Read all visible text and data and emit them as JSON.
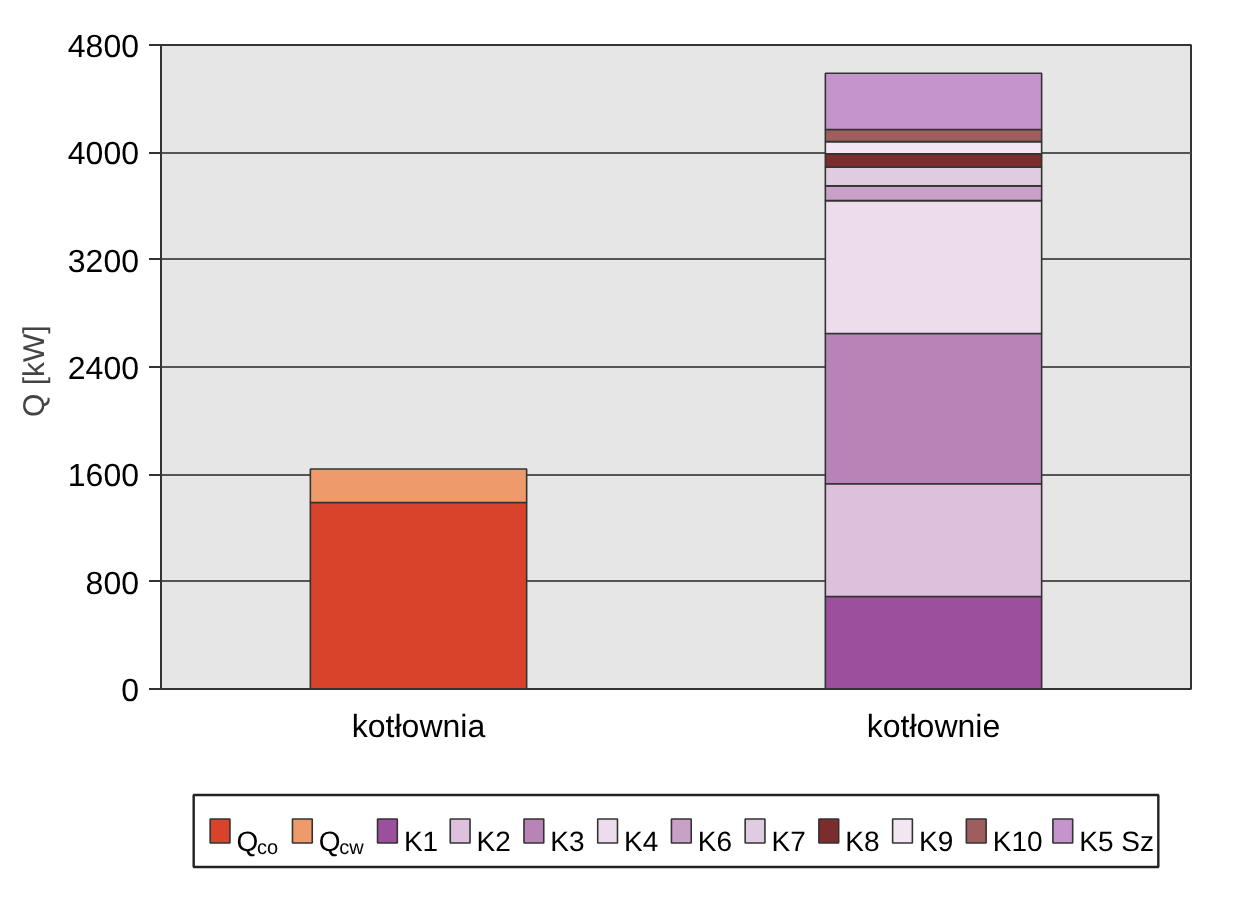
{
  "chart_data": {
    "type": "bar",
    "stacked": true,
    "categories": [
      "kotłownia",
      "kotłownie"
    ],
    "ylabel": "Q  [kW]",
    "ylim": [
      0,
      4800
    ],
    "yticks": [
      0,
      800,
      1600,
      2400,
      3200,
      4000,
      4800
    ],
    "grid": "y",
    "legend": "bottom",
    "series": [
      {
        "name": "Q$_{co}$",
        "color": "#d9432b",
        "values": [
          1390,
          null
        ]
      },
      {
        "name": "Q$_{cw}$",
        "color": "#ef9a6a",
        "values": [
          250,
          null
        ]
      },
      {
        "name": "K1",
        "color": "#9c4f9c",
        "values": [
          null,
          690
        ]
      },
      {
        "name": "K2",
        "color": "#dcc0dc",
        "values": [
          null,
          840
        ]
      },
      {
        "name": "K3",
        "color": "#b884b8",
        "values": [
          null,
          1120
        ]
      },
      {
        "name": "K4",
        "color": "#ecdcec",
        "values": [
          null,
          990
        ]
      },
      {
        "name": "K6",
        "color": "#c8a0c8",
        "values": [
          null,
          110
        ]
      },
      {
        "name": "K7",
        "color": "#e0cce0",
        "values": [
          null,
          140
        ]
      },
      {
        "name": "K8",
        "color": "#7b2c2c",
        "values": [
          null,
          100
        ]
      },
      {
        "name": "K9",
        "color": "#f2e6f2",
        "values": [
          null,
          90
        ]
      },
      {
        "name": "K10",
        "color": "#9e5e5e",
        "values": [
          null,
          90
        ]
      },
      {
        "name": "K5 Sz",
        "color": "#c594cc",
        "values": [
          null,
          420
        ]
      }
    ]
  }
}
